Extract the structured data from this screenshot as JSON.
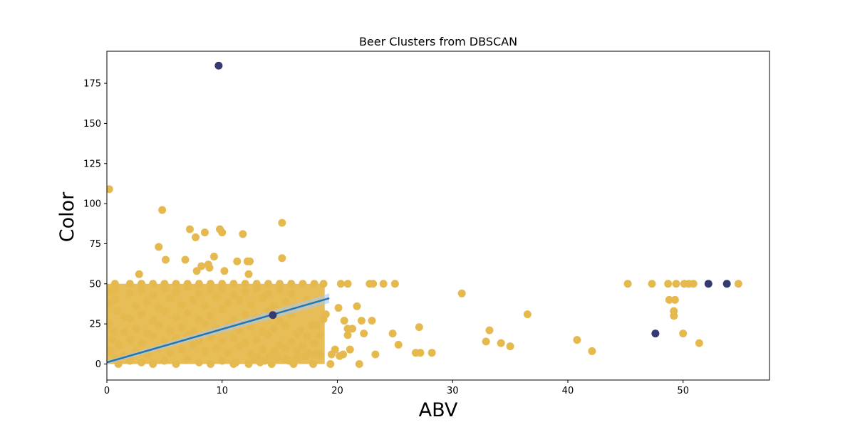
{
  "chart_data": {
    "type": "scatter",
    "title": "Beer Clusters from DBSCAN",
    "xlabel": "ABV",
    "ylabel": "Color",
    "xlim": [
      0,
      57.5
    ],
    "ylim": [
      -10,
      195
    ],
    "x_ticks": [
      0,
      10,
      20,
      30,
      40,
      50
    ],
    "y_ticks": [
      0,
      25,
      50,
      75,
      100,
      125,
      150,
      175
    ],
    "grid": false,
    "legend": "none",
    "colors": {
      "core": "#e6b94f",
      "noise": "#353a72",
      "fit_line": "#1f77b4",
      "fit_band": "#aec7e8"
    },
    "series": [
      {
        "cluster": "core",
        "points": [
          [
            0.2,
            109
          ],
          [
            4.8,
            96
          ],
          [
            7.2,
            84
          ],
          [
            9.8,
            84
          ],
          [
            10,
            82
          ],
          [
            8.5,
            82
          ],
          [
            11.8,
            81
          ],
          [
            7.7,
            79
          ],
          [
            15.2,
            88
          ],
          [
            4.5,
            73
          ],
          [
            9.3,
            67
          ],
          [
            6.8,
            65
          ],
          [
            5.1,
            65
          ],
          [
            15.2,
            66
          ],
          [
            12.2,
            64
          ],
          [
            12.4,
            64
          ],
          [
            11.3,
            64
          ],
          [
            8.8,
            62
          ],
          [
            8.2,
            61
          ],
          [
            7.8,
            58
          ],
          [
            10.2,
            58
          ],
          [
            12.3,
            56
          ],
          [
            2.8,
            56
          ],
          [
            8.9,
            60
          ],
          [
            0.3,
            45
          ],
          [
            0.7,
            46
          ],
          [
            0.7,
            40
          ],
          [
            0.7,
            50
          ],
          [
            0.2,
            38
          ],
          [
            0.2,
            25
          ],
          [
            1.5,
            29
          ],
          [
            0.9,
            33
          ],
          [
            20.3,
            50
          ],
          [
            20.9,
            50
          ],
          [
            22.8,
            50
          ],
          [
            23.1,
            50
          ],
          [
            24,
            50
          ],
          [
            25,
            50
          ],
          [
            18.8,
            50
          ],
          [
            45.2,
            50
          ],
          [
            47.3,
            50
          ],
          [
            48.7,
            50
          ],
          [
            49.4,
            50
          ],
          [
            50.1,
            50
          ],
          [
            50.5,
            50
          ],
          [
            50.9,
            50
          ],
          [
            54.8,
            50
          ],
          [
            48.8,
            40
          ],
          [
            49.3,
            40
          ],
          [
            49.2,
            33
          ],
          [
            49.2,
            30
          ],
          [
            50,
            19
          ],
          [
            51.4,
            13
          ],
          [
            30.8,
            44
          ],
          [
            36.5,
            31
          ],
          [
            33.2,
            21
          ],
          [
            32.9,
            14
          ],
          [
            34.2,
            13
          ],
          [
            35,
            11
          ],
          [
            40.8,
            15
          ],
          [
            42.1,
            8
          ],
          [
            27.1,
            23
          ],
          [
            26.8,
            7
          ],
          [
            27.2,
            7
          ],
          [
            28.2,
            7
          ],
          [
            25.3,
            12
          ],
          [
            24.8,
            19
          ],
          [
            23.3,
            6
          ],
          [
            23,
            27
          ],
          [
            22.1,
            27
          ],
          [
            21.7,
            36
          ],
          [
            20.1,
            35
          ],
          [
            20.6,
            27
          ],
          [
            20.9,
            18
          ],
          [
            20.9,
            22
          ],
          [
            21.3,
            22
          ],
          [
            22.3,
            19
          ],
          [
            21.1,
            9
          ],
          [
            20.5,
            6
          ],
          [
            21.9,
            0
          ],
          [
            19.4,
            0
          ],
          [
            17.9,
            0
          ],
          [
            18.5,
            18
          ],
          [
            16.8,
            21
          ],
          [
            17.8,
            24
          ],
          [
            17.4,
            17
          ],
          [
            17.4,
            40
          ],
          [
            18.2,
            24
          ],
          [
            19,
            31
          ],
          [
            18.8,
            28
          ],
          [
            16.2,
            0
          ],
          [
            15.5,
            3
          ],
          [
            14.8,
            4
          ],
          [
            14.3,
            0
          ],
          [
            13.7,
            2
          ],
          [
            13.1,
            4
          ],
          [
            12.3,
            0
          ],
          [
            1,
            0
          ],
          [
            2,
            2
          ],
          [
            3,
            1
          ],
          [
            4,
            0
          ],
          [
            5,
            2
          ],
          [
            6,
            0
          ],
          [
            7,
            3
          ],
          [
            8,
            1
          ],
          [
            9,
            0
          ],
          [
            10,
            2
          ],
          [
            11,
            0
          ],
          [
            1.5,
            5
          ],
          [
            2.5,
            8
          ],
          [
            3.5,
            6
          ],
          [
            4.5,
            10
          ],
          [
            5.5,
            7
          ],
          [
            6.5,
            9
          ],
          [
            7.5,
            12
          ],
          [
            8.5,
            8
          ],
          [
            9.5,
            10
          ],
          [
            10.5,
            7
          ],
          [
            11.5,
            11
          ],
          [
            12.5,
            6
          ],
          [
            13.5,
            9
          ],
          [
            14.5,
            8
          ],
          [
            15.5,
            10
          ],
          [
            16.5,
            8
          ],
          [
            17.5,
            7
          ],
          [
            18.5,
            6
          ],
          [
            1,
            12
          ],
          [
            2,
            15
          ],
          [
            3,
            13
          ],
          [
            4,
            17
          ],
          [
            5,
            14
          ],
          [
            6,
            16
          ],
          [
            7,
            18
          ],
          [
            8,
            15
          ],
          [
            9,
            17
          ],
          [
            10,
            14
          ],
          [
            11,
            16
          ],
          [
            12,
            13
          ],
          [
            13,
            15
          ],
          [
            14,
            18
          ],
          [
            15,
            12
          ],
          [
            16,
            14
          ],
          [
            17,
            11
          ],
          [
            18,
            13
          ],
          [
            1.5,
            20
          ],
          [
            2.5,
            22
          ],
          [
            3.5,
            19
          ],
          [
            4.5,
            24
          ],
          [
            5.5,
            21
          ],
          [
            6.5,
            23
          ],
          [
            7.5,
            20
          ],
          [
            8.5,
            25
          ],
          [
            9.5,
            22
          ],
          [
            10.5,
            24
          ],
          [
            11.5,
            21
          ],
          [
            12.5,
            23
          ],
          [
            13.5,
            20
          ],
          [
            14.5,
            22
          ],
          [
            15.5,
            24
          ],
          [
            16.5,
            19
          ],
          [
            2,
            28
          ],
          [
            3,
            31
          ],
          [
            4,
            27
          ],
          [
            5,
            33
          ],
          [
            6,
            29
          ],
          [
            7,
            32
          ],
          [
            8,
            28
          ],
          [
            9,
            30
          ],
          [
            10,
            34
          ],
          [
            11,
            27
          ],
          [
            12,
            31
          ],
          [
            13,
            29
          ],
          [
            14,
            33
          ],
          [
            15,
            27
          ],
          [
            16,
            31
          ],
          [
            2.5,
            36
          ],
          [
            3.5,
            39
          ],
          [
            4.5,
            35
          ],
          [
            5.5,
            41
          ],
          [
            6.5,
            37
          ],
          [
            7.5,
            40
          ],
          [
            8.5,
            36
          ],
          [
            9.5,
            42
          ],
          [
            10.5,
            38
          ],
          [
            11.5,
            40
          ],
          [
            12.5,
            37
          ],
          [
            13.5,
            41
          ],
          [
            14.5,
            36
          ],
          [
            15.5,
            39
          ],
          [
            2,
            44
          ],
          [
            3,
            46
          ],
          [
            4,
            43
          ],
          [
            5,
            47
          ],
          [
            6,
            45
          ],
          [
            7,
            48
          ],
          [
            8,
            44
          ],
          [
            9,
            46
          ],
          [
            10,
            47
          ],
          [
            11,
            43
          ],
          [
            12,
            45
          ],
          [
            13,
            47
          ],
          [
            14,
            44
          ],
          [
            15,
            46
          ],
          [
            16,
            44
          ],
          [
            2,
            50
          ],
          [
            3,
            50
          ],
          [
            4,
            50
          ],
          [
            5,
            50
          ],
          [
            6,
            50
          ],
          [
            7,
            50
          ],
          [
            8,
            50
          ],
          [
            9,
            50
          ],
          [
            10,
            50
          ],
          [
            11,
            50
          ],
          [
            12,
            50
          ],
          [
            13,
            50
          ],
          [
            14,
            50
          ],
          [
            15,
            50
          ],
          [
            16,
            50
          ],
          [
            17,
            50
          ],
          [
            18,
            50
          ],
          [
            0.3,
            8
          ],
          [
            0.5,
            15
          ],
          [
            0.8,
            4
          ],
          [
            0.6,
            20
          ],
          [
            19.5,
            6
          ],
          [
            19.8,
            9
          ],
          [
            20.2,
            5
          ],
          [
            17.2,
            5
          ],
          [
            16.5,
            4
          ],
          [
            18.1,
            6
          ],
          [
            15.8,
            2
          ],
          [
            14.1,
            5
          ],
          [
            13.3,
            1
          ],
          [
            12.8,
            3
          ],
          [
            11.2,
            1
          ]
        ]
      },
      {
        "cluster": "noise",
        "points": [
          [
            9.7,
            186
          ],
          [
            14.4,
            30.5
          ],
          [
            47.6,
            19
          ],
          [
            52.2,
            50
          ],
          [
            53.8,
            50
          ]
        ]
      }
    ],
    "regression": {
      "x": [
        0,
        19.3
      ],
      "y": [
        1,
        41
      ]
    }
  }
}
